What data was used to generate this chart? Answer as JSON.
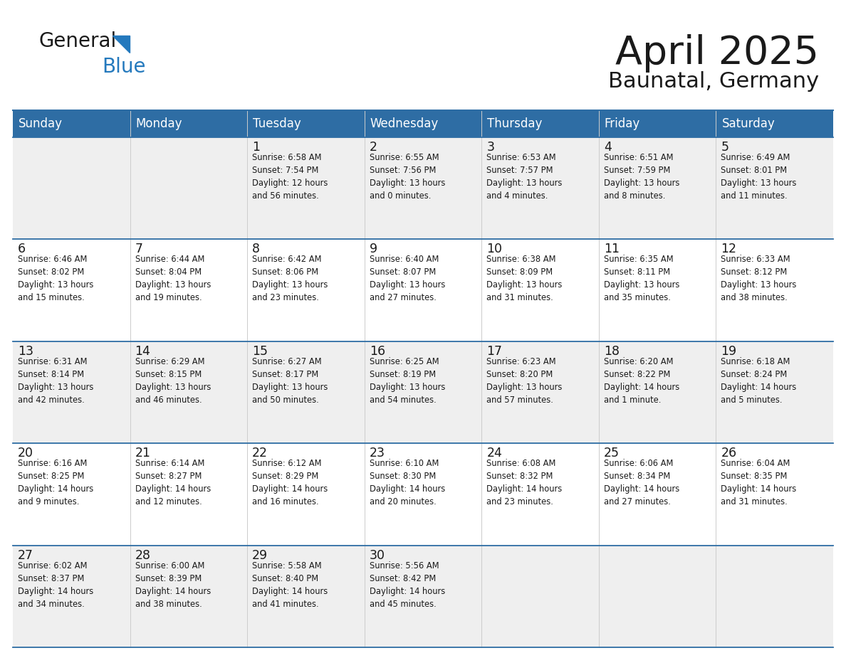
{
  "title": "April 2025",
  "subtitle": "Baunatal, Germany",
  "header_color": "#2E6DA4",
  "header_text_color": "#FFFFFF",
  "cell_bg_even": "#EFEFEF",
  "cell_bg_odd": "#FFFFFF",
  "line_color": "#2E6DA4",
  "days_of_week": [
    "Sunday",
    "Monday",
    "Tuesday",
    "Wednesday",
    "Thursday",
    "Friday",
    "Saturday"
  ],
  "weeks": [
    [
      {
        "day": "",
        "text": ""
      },
      {
        "day": "",
        "text": ""
      },
      {
        "day": "1",
        "text": "Sunrise: 6:58 AM\nSunset: 7:54 PM\nDaylight: 12 hours\nand 56 minutes."
      },
      {
        "day": "2",
        "text": "Sunrise: 6:55 AM\nSunset: 7:56 PM\nDaylight: 13 hours\nand 0 minutes."
      },
      {
        "day": "3",
        "text": "Sunrise: 6:53 AM\nSunset: 7:57 PM\nDaylight: 13 hours\nand 4 minutes."
      },
      {
        "day": "4",
        "text": "Sunrise: 6:51 AM\nSunset: 7:59 PM\nDaylight: 13 hours\nand 8 minutes."
      },
      {
        "day": "5",
        "text": "Sunrise: 6:49 AM\nSunset: 8:01 PM\nDaylight: 13 hours\nand 11 minutes."
      }
    ],
    [
      {
        "day": "6",
        "text": "Sunrise: 6:46 AM\nSunset: 8:02 PM\nDaylight: 13 hours\nand 15 minutes."
      },
      {
        "day": "7",
        "text": "Sunrise: 6:44 AM\nSunset: 8:04 PM\nDaylight: 13 hours\nand 19 minutes."
      },
      {
        "day": "8",
        "text": "Sunrise: 6:42 AM\nSunset: 8:06 PM\nDaylight: 13 hours\nand 23 minutes."
      },
      {
        "day": "9",
        "text": "Sunrise: 6:40 AM\nSunset: 8:07 PM\nDaylight: 13 hours\nand 27 minutes."
      },
      {
        "day": "10",
        "text": "Sunrise: 6:38 AM\nSunset: 8:09 PM\nDaylight: 13 hours\nand 31 minutes."
      },
      {
        "day": "11",
        "text": "Sunrise: 6:35 AM\nSunset: 8:11 PM\nDaylight: 13 hours\nand 35 minutes."
      },
      {
        "day": "12",
        "text": "Sunrise: 6:33 AM\nSunset: 8:12 PM\nDaylight: 13 hours\nand 38 minutes."
      }
    ],
    [
      {
        "day": "13",
        "text": "Sunrise: 6:31 AM\nSunset: 8:14 PM\nDaylight: 13 hours\nand 42 minutes."
      },
      {
        "day": "14",
        "text": "Sunrise: 6:29 AM\nSunset: 8:15 PM\nDaylight: 13 hours\nand 46 minutes."
      },
      {
        "day": "15",
        "text": "Sunrise: 6:27 AM\nSunset: 8:17 PM\nDaylight: 13 hours\nand 50 minutes."
      },
      {
        "day": "16",
        "text": "Sunrise: 6:25 AM\nSunset: 8:19 PM\nDaylight: 13 hours\nand 54 minutes."
      },
      {
        "day": "17",
        "text": "Sunrise: 6:23 AM\nSunset: 8:20 PM\nDaylight: 13 hours\nand 57 minutes."
      },
      {
        "day": "18",
        "text": "Sunrise: 6:20 AM\nSunset: 8:22 PM\nDaylight: 14 hours\nand 1 minute."
      },
      {
        "day": "19",
        "text": "Sunrise: 6:18 AM\nSunset: 8:24 PM\nDaylight: 14 hours\nand 5 minutes."
      }
    ],
    [
      {
        "day": "20",
        "text": "Sunrise: 6:16 AM\nSunset: 8:25 PM\nDaylight: 14 hours\nand 9 minutes."
      },
      {
        "day": "21",
        "text": "Sunrise: 6:14 AM\nSunset: 8:27 PM\nDaylight: 14 hours\nand 12 minutes."
      },
      {
        "day": "22",
        "text": "Sunrise: 6:12 AM\nSunset: 8:29 PM\nDaylight: 14 hours\nand 16 minutes."
      },
      {
        "day": "23",
        "text": "Sunrise: 6:10 AM\nSunset: 8:30 PM\nDaylight: 14 hours\nand 20 minutes."
      },
      {
        "day": "24",
        "text": "Sunrise: 6:08 AM\nSunset: 8:32 PM\nDaylight: 14 hours\nand 23 minutes."
      },
      {
        "day": "25",
        "text": "Sunrise: 6:06 AM\nSunset: 8:34 PM\nDaylight: 14 hours\nand 27 minutes."
      },
      {
        "day": "26",
        "text": "Sunrise: 6:04 AM\nSunset: 8:35 PM\nDaylight: 14 hours\nand 31 minutes."
      }
    ],
    [
      {
        "day": "27",
        "text": "Sunrise: 6:02 AM\nSunset: 8:37 PM\nDaylight: 14 hours\nand 34 minutes."
      },
      {
        "day": "28",
        "text": "Sunrise: 6:00 AM\nSunset: 8:39 PM\nDaylight: 14 hours\nand 38 minutes."
      },
      {
        "day": "29",
        "text": "Sunrise: 5:58 AM\nSunset: 8:40 PM\nDaylight: 14 hours\nand 41 minutes."
      },
      {
        "day": "30",
        "text": "Sunrise: 5:56 AM\nSunset: 8:42 PM\nDaylight: 14 hours\nand 45 minutes."
      },
      {
        "day": "",
        "text": ""
      },
      {
        "day": "",
        "text": ""
      },
      {
        "day": "",
        "text": ""
      }
    ]
  ],
  "logo_color_general": "#1a1a1a",
  "logo_color_blue": "#2479BD",
  "logo_triangle_color": "#2479BD",
  "title_color": "#1a1a1a",
  "subtitle_color": "#1a1a1a",
  "cell_text_color": "#1a1a1a"
}
